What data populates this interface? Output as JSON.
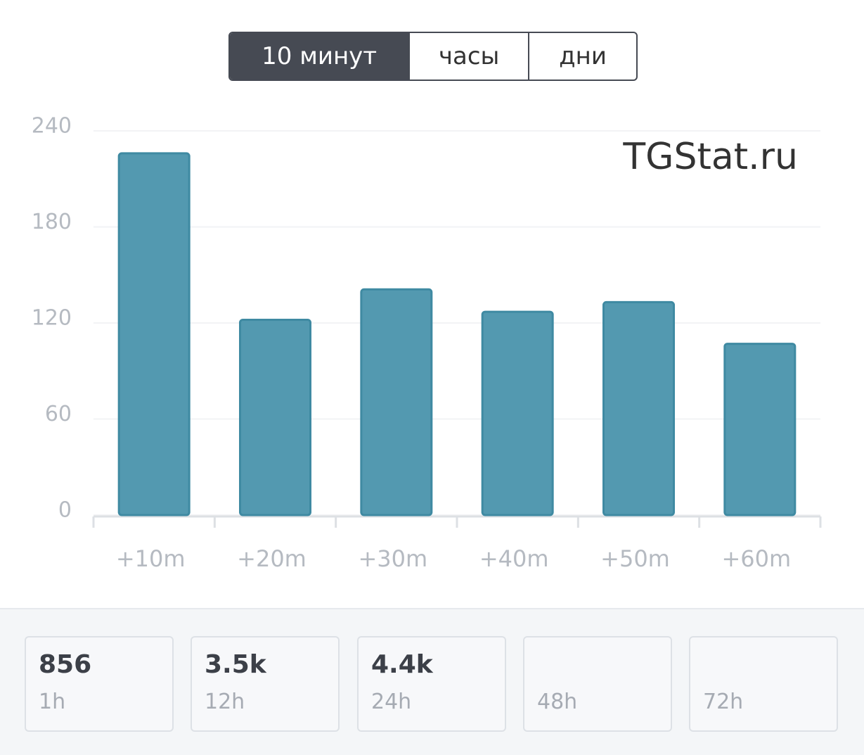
{
  "tabs": [
    "10 минут",
    "часы",
    "дни"
  ],
  "chart_data": {
    "type": "bar",
    "watermark": "TGStat.ru",
    "categories": [
      "+10m",
      "+20m",
      "+30m",
      "+40m",
      "+50m",
      "+60m"
    ],
    "values": [
      226,
      122,
      141,
      127,
      133,
      107
    ],
    "color": "#5399b0",
    "ylim": [
      0,
      240
    ],
    "yticks": [
      0,
      60,
      120,
      180,
      240
    ],
    "grid": true
  },
  "stats": [
    {
      "value": "856",
      "label": "1h"
    },
    {
      "value": "3.5k",
      "label": "12h"
    },
    {
      "value": "4.4k",
      "label": "24h"
    },
    {
      "label": "48h"
    },
    {
      "label": "72h"
    }
  ]
}
